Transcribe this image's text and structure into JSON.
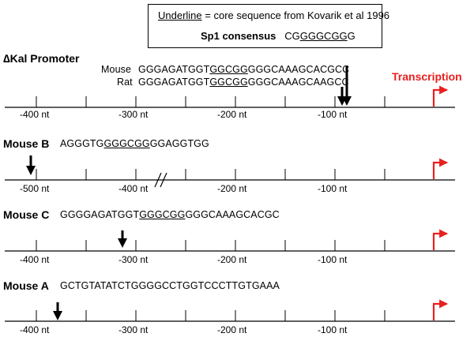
{
  "legend": {
    "underline_word": "Underline",
    "line1_rest": " = core sequence from Kovarik et al 1996",
    "consensus_label": "Sp1 consensus",
    "consensus_pre": "CG",
    "consensus_core": "GGGCGG",
    "consensus_post": "G"
  },
  "transcription_label": "Transcription",
  "colors": {
    "transcription": "#e8201f",
    "line": "#000000"
  },
  "panels": {
    "kal": {
      "title_symbol": "∆",
      "title_rest": "Kal Promoter",
      "mouse_label": "Mouse",
      "mouse_pre": "GGGAGATGGT",
      "mouse_core": "GGCGG",
      "mouse_post": "GGGCAAAGCACGCC",
      "rat_label": "Rat",
      "rat_pre": "GGGAGATGGT",
      "rat_core": "GGCGG",
      "rat_post": "GGGCAAAGCAAGCC",
      "ticks": [
        "-400 nt",
        "-300 nt",
        "-200 nt",
        "-100 nt"
      ]
    },
    "mouse_b": {
      "title": "Mouse B",
      "seq_pre": "AGGGTG",
      "seq_core": "GGGCGG",
      "seq_post": "GGAGGTGG",
      "ticks": [
        "-500 nt",
        "-400 nt",
        "-200 nt",
        "-100 nt"
      ]
    },
    "mouse_c": {
      "title": "Mouse C",
      "seq_pre": "GGGGAGATGGT",
      "seq_core": "GGGCGG",
      "seq_post": "GGGCAAAGCACGC",
      "ticks": [
        "-400 nt",
        "-300 nt",
        "-200 nt",
        "-100 nt"
      ]
    },
    "mouse_a": {
      "title": "Mouse A",
      "seq": "GCTGTATATCTGGGGCCTGGTCCCTTGTGAAA",
      "ticks": [
        "-400 nt",
        "-300 nt",
        "-200 nt",
        "-100 nt"
      ]
    }
  }
}
